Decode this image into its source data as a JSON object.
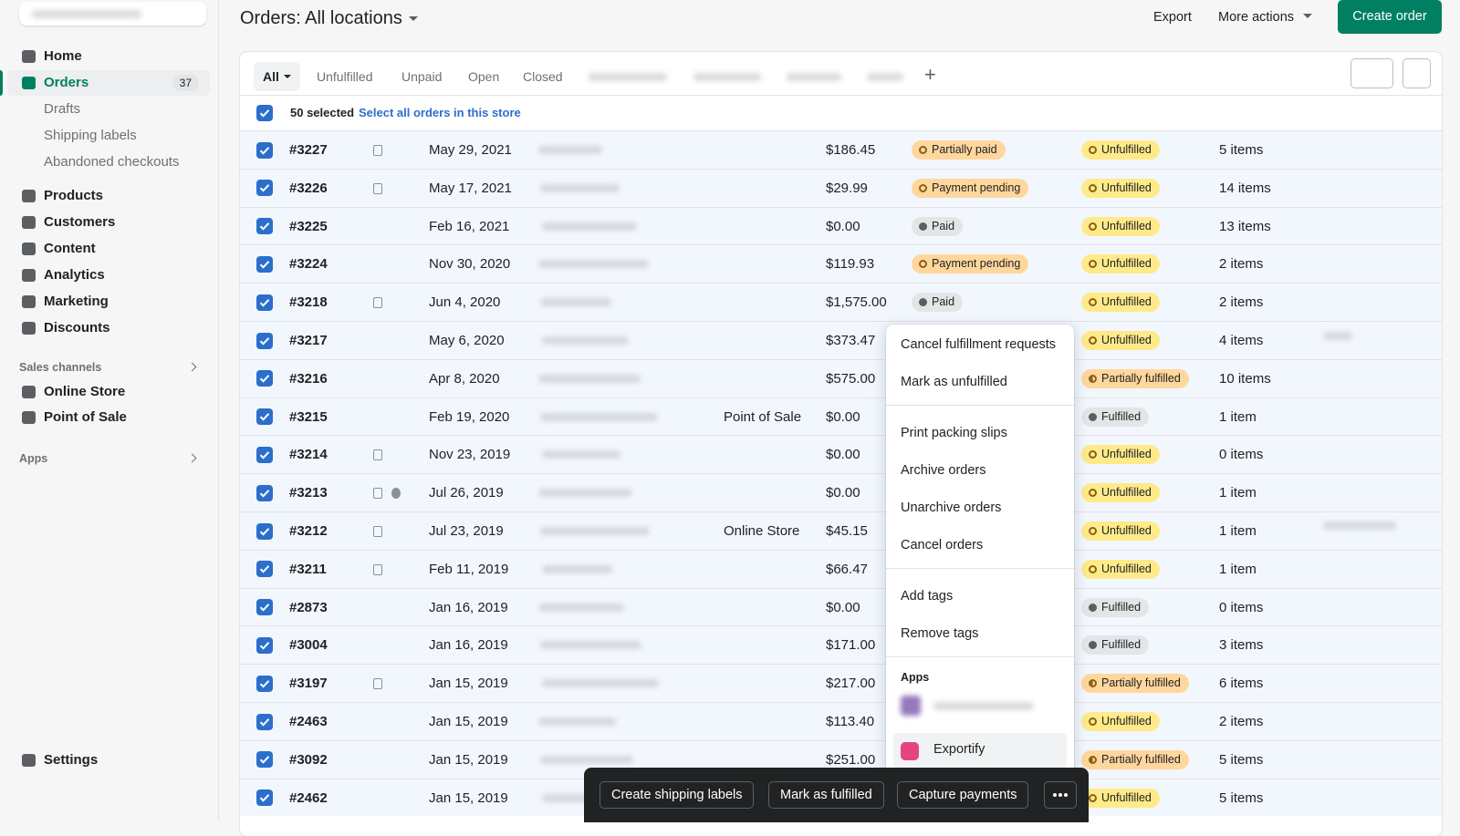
{
  "sidebar": {
    "nav": [
      {
        "label": "Home"
      },
      {
        "label": "Orders",
        "badge": "37",
        "active": true
      },
      {
        "label": "Drafts",
        "sub": true
      },
      {
        "label": "Shipping labels",
        "sub": true
      },
      {
        "label": "Abandoned checkouts",
        "sub": true
      },
      {
        "label": "Products"
      },
      {
        "label": "Customers"
      },
      {
        "label": "Content"
      },
      {
        "label": "Analytics"
      },
      {
        "label": "Marketing"
      },
      {
        "label": "Discounts"
      }
    ],
    "sales_channels": {
      "heading": "Sales channels",
      "items": [
        "Online Store",
        "Point of Sale"
      ]
    },
    "apps": "Apps",
    "settings": "Settings"
  },
  "header": {
    "title": "Orders:",
    "location": "All locations",
    "export": "Export",
    "more_actions": "More actions",
    "create": "Create order"
  },
  "tabs": [
    "All",
    "Unfulfilled",
    "Unpaid",
    "Open",
    "Closed"
  ],
  "selection": {
    "count": "50 selected",
    "select_all": "Select all orders in this store"
  },
  "rows": [
    {
      "order": "#3227",
      "note": true,
      "date": "May 29, 2021",
      "channel": null,
      "total": "$186.45",
      "payment": "Partially paid",
      "fulfillment": "Unfulfilled",
      "items": "5 items"
    },
    {
      "order": "#3226",
      "note": true,
      "date": "May 17, 2021",
      "channel": null,
      "total": "$29.99",
      "payment": "Payment pending",
      "fulfillment": "Unfulfilled",
      "items": "14 items"
    },
    {
      "order": "#3225",
      "note": false,
      "date": "Feb 16, 2021",
      "channel": null,
      "total": "$0.00",
      "payment": "Paid",
      "fulfillment": "Unfulfilled",
      "items": "13 items"
    },
    {
      "order": "#3224",
      "note": false,
      "date": "Nov 30, 2020",
      "channel": null,
      "total": "$119.93",
      "payment": "Payment pending",
      "fulfillment": "Unfulfilled",
      "items": "2 items"
    },
    {
      "order": "#3218",
      "note": true,
      "date": "Jun 4, 2020",
      "channel": null,
      "total": "$1,575.00",
      "payment": "Paid",
      "fulfillment": "Unfulfilled",
      "items": "2 items"
    },
    {
      "order": "#3217",
      "note": false,
      "date": "May 6, 2020",
      "channel": null,
      "total": "$373.47",
      "payment": null,
      "fulfillment": "Unfulfilled",
      "items": "4 items"
    },
    {
      "order": "#3216",
      "note": false,
      "date": "Apr 8, 2020",
      "channel": null,
      "total": "$575.00",
      "payment": null,
      "fulfillment": "Partially fulfilled",
      "items": "10 items"
    },
    {
      "order": "#3215",
      "note": false,
      "date": "Feb 19, 2020",
      "channel": "Point of Sale",
      "total": "$0.00",
      "payment": null,
      "fulfillment": "Fulfilled",
      "items": "1 item"
    },
    {
      "order": "#3214",
      "note": true,
      "date": "Nov 23, 2019",
      "channel": null,
      "total": "$0.00",
      "payment": null,
      "fulfillment": "Unfulfilled",
      "items": "0 items"
    },
    {
      "order": "#3213",
      "note": true,
      "chat": true,
      "date": "Jul 26, 2019",
      "channel": null,
      "total": "$0.00",
      "payment": null,
      "fulfillment": "Unfulfilled",
      "items": "1 item"
    },
    {
      "order": "#3212",
      "note": true,
      "date": "Jul 23, 2019",
      "channel": "Online Store",
      "total": "$45.15",
      "payment": null,
      "fulfillment": "Unfulfilled",
      "items": "1 item"
    },
    {
      "order": "#3211",
      "note": true,
      "date": "Feb 11, 2019",
      "channel": null,
      "total": "$66.47",
      "payment": null,
      "fulfillment": "Unfulfilled",
      "items": "1 item"
    },
    {
      "order": "#2873",
      "note": false,
      "date": "Jan 16, 2019",
      "channel": null,
      "total": "$0.00",
      "payment": null,
      "fulfillment": "Fulfilled",
      "items": "0 items"
    },
    {
      "order": "#3004",
      "note": false,
      "date": "Jan 16, 2019",
      "channel": null,
      "total": "$171.00",
      "payment": null,
      "fulfillment": "Fulfilled",
      "items": "3 items"
    },
    {
      "order": "#3197",
      "note": true,
      "date": "Jan 15, 2019",
      "channel": null,
      "total": "$217.00",
      "payment": null,
      "fulfillment": "Partially fulfilled",
      "items": "6 items"
    },
    {
      "order": "#2463",
      "note": false,
      "date": "Jan 15, 2019",
      "channel": null,
      "total": "$113.40",
      "payment": null,
      "fulfillment": "Unfulfilled",
      "items": "2 items"
    },
    {
      "order": "#3092",
      "note": false,
      "date": "Jan 15, 2019",
      "channel": null,
      "total": "$251.00",
      "payment": null,
      "fulfillment": "Partially fulfilled",
      "items": "5 items"
    },
    {
      "order": "#2462",
      "note": false,
      "date": "Jan 15, 2019",
      "channel": null,
      "total": null,
      "payment": null,
      "fulfillment": "Unfulfilled",
      "items": "5 items"
    }
  ],
  "menu": {
    "groups": [
      [
        "Cancel fulfillment requests",
        "Mark as unfulfilled"
      ],
      [
        "Print packing slips",
        "Archive orders",
        "Unarchive orders",
        "Cancel orders"
      ],
      [
        "Add tags",
        "Remove tags"
      ]
    ],
    "apps_heading": "Apps",
    "app": "Exportify"
  },
  "bulk_actions": [
    "Create shipping labels",
    "Mark as fulfilled",
    "Capture payments"
  ]
}
